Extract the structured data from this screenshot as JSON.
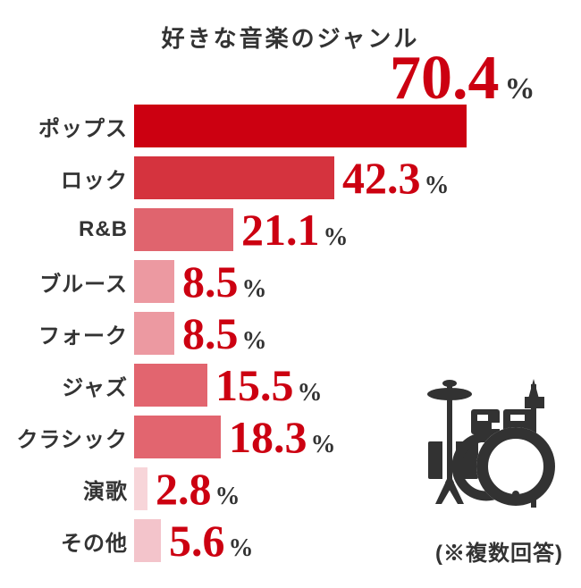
{
  "note": "(※複数回答)",
  "colors": {
    "number_red": "#cc0011",
    "text_dark": "#333333",
    "background": "#ffffff",
    "icon_dark": "#323232"
  },
  "icons": [
    {
      "name": "drum-kit-icon",
      "meaning": "drum set illustration"
    }
  ],
  "chart_data": {
    "type": "bar",
    "orientation": "horizontal",
    "title": "好きな音楽のジャンル",
    "xlabel": "",
    "ylabel": "",
    "unit": "%",
    "xlim": [
      0,
      75
    ],
    "grid": false,
    "legend": "none",
    "categories": [
      "ポップス",
      "ロック",
      "R&B",
      "ブルース",
      "フォーク",
      "ジャズ",
      "クラシック",
      "演歌",
      "その他"
    ],
    "values": [
      70.4,
      42.3,
      21.1,
      8.5,
      8.5,
      15.5,
      18.3,
      2.8,
      5.6
    ],
    "value_labels": [
      "70.4",
      "42.3",
      "21.1",
      "8.5",
      "8.5",
      "15.5",
      "18.3",
      "2.8",
      "5.6"
    ],
    "bar_colors": [
      "#cc0011",
      "#d5333e",
      "#e0646e",
      "#ec99a1",
      "#ec99a1",
      "#e2656f",
      "#e2656f",
      "#f7d5d9",
      "#f3c4cb"
    ],
    "annotations": [
      "(※複数回答)"
    ],
    "notes": "first bar's value label (70.4%) is displayed above the bar in larger type; all other values sit right of their bars"
  }
}
